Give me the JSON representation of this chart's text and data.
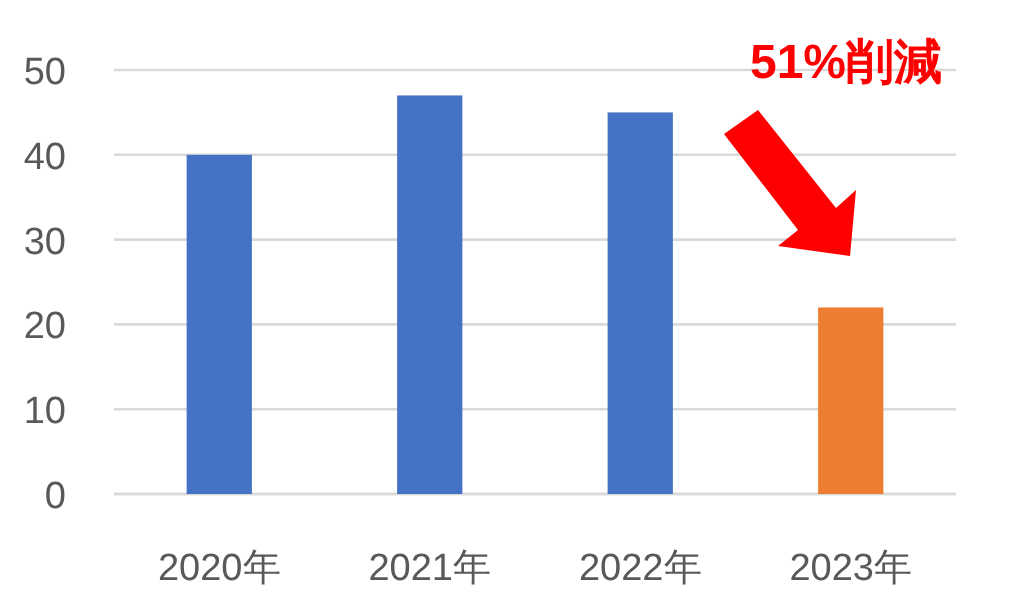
{
  "chart_data": {
    "type": "bar",
    "categories": [
      "2020年",
      "2021年",
      "2022年",
      "2023年"
    ],
    "values": [
      40,
      47,
      45,
      22
    ],
    "colors": [
      "#4472c4",
      "#4472c4",
      "#4472c4",
      "#ed7d31"
    ],
    "ylim": [
      0,
      50
    ],
    "yticks": [
      0,
      10,
      20,
      30,
      40,
      50
    ],
    "grid": "y",
    "annotations": [
      "51%削減"
    ]
  }
}
